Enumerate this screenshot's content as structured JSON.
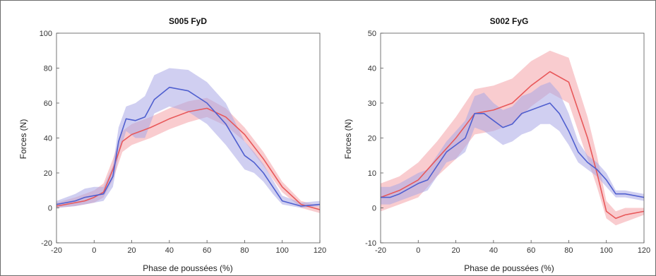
{
  "colors": {
    "series_a": "#e8585a",
    "series_b": "#4f5fcf",
    "band_a": "#f4a3a8",
    "band_b": "#a9a8e6"
  },
  "chart_data": [
    {
      "type": "line",
      "title": "S005 FyD",
      "xlabel": "Phase de poussées (%)",
      "ylabel": "Forces (N)",
      "xlim": [
        -20,
        120
      ],
      "ylim": [
        -20,
        100
      ],
      "xticks": [
        "-20",
        "0",
        "20",
        "40",
        "60",
        "80",
        "100",
        "120"
      ],
      "yticks": [
        "-20",
        "0",
        "20",
        "40",
        "60",
        "80",
        "100"
      ],
      "grid": false,
      "series": [
        {
          "color": "#e8585a",
          "x": [
            -20,
            -10,
            -5,
            0,
            5,
            10,
            15,
            20,
            25,
            30,
            40,
            50,
            60,
            70,
            80,
            90,
            100,
            110,
            120
          ],
          "y": [
            1,
            3,
            4,
            6,
            9,
            22,
            38,
            42,
            44,
            46,
            51,
            55,
            57,
            52,
            42,
            28,
            12,
            2,
            -1
          ],
          "band": [
            [
              0,
              3
            ],
            [
              1,
              6
            ],
            [
              2,
              8
            ],
            [
              3,
              10
            ],
            [
              6,
              14
            ],
            [
              16,
              28
            ],
            [
              32,
              44
            ],
            [
              36,
              48
            ],
            [
              38,
              50
            ],
            [
              40,
              52
            ],
            [
              45,
              57
            ],
            [
              49,
              61
            ],
            [
              52,
              63
            ],
            [
              47,
              57
            ],
            [
              38,
              46
            ],
            [
              24,
              32
            ],
            [
              9,
              15
            ],
            [
              0,
              4
            ],
            [
              -3,
              1
            ]
          ]
        },
        {
          "color": "#4f5fcf",
          "x": [
            -20,
            -10,
            -5,
            0,
            5,
            10,
            13,
            17,
            22,
            27,
            32,
            40,
            50,
            60,
            70,
            80,
            85,
            90,
            95,
            100,
            110,
            120
          ],
          "y": [
            2,
            4,
            6,
            7,
            8,
            18,
            38,
            51,
            50,
            52,
            62,
            69,
            67,
            60,
            48,
            30,
            26,
            20,
            12,
            4,
            1,
            2
          ],
          "band": [
            [
              0,
              4
            ],
            [
              1,
              8
            ],
            [
              2,
              11
            ],
            [
              3,
              12
            ],
            [
              4,
              12
            ],
            [
              12,
              24
            ],
            [
              30,
              46
            ],
            [
              44,
              58
            ],
            [
              40,
              60
            ],
            [
              40,
              64
            ],
            [
              54,
              76
            ],
            [
              58,
              80
            ],
            [
              55,
              79
            ],
            [
              48,
              72
            ],
            [
              36,
              60
            ],
            [
              22,
              38
            ],
            [
              20,
              32
            ],
            [
              15,
              25
            ],
            [
              8,
              16
            ],
            [
              2,
              7
            ],
            [
              0,
              3
            ],
            [
              1,
              4
            ]
          ]
        }
      ]
    },
    {
      "type": "line",
      "title": "S002 FyG",
      "xlabel": "Phase de poussées (%)",
      "ylabel": "Forces (N)",
      "xlim": [
        -20,
        120
      ],
      "ylim": [
        -10,
        50
      ],
      "xticks": [
        "-20",
        "0",
        "20",
        "40",
        "60",
        "80",
        "100",
        "120"
      ],
      "yticks": [
        "-10",
        "0",
        "10",
        "20",
        "30",
        "40",
        "50"
      ],
      "grid": false,
      "series": [
        {
          "color": "#e8585a",
          "x": [
            -20,
            -10,
            0,
            10,
            20,
            30,
            40,
            50,
            60,
            70,
            80,
            90,
            95,
            100,
            105,
            110,
            120
          ],
          "y": [
            3,
            5,
            8,
            14,
            20,
            27,
            28,
            30,
            35,
            39,
            36,
            20,
            10,
            -1,
            -3,
            -2,
            -1
          ],
          "band": [
            [
              -1,
              7
            ],
            [
              1,
              9
            ],
            [
              3,
              13
            ],
            [
              9,
              19
            ],
            [
              14,
              26
            ],
            [
              21,
              34
            ],
            [
              22,
              35
            ],
            [
              24,
              37
            ],
            [
              29,
              42
            ],
            [
              33,
              45
            ],
            [
              30,
              43
            ],
            [
              14,
              26
            ],
            [
              6,
              15
            ],
            [
              -3,
              2
            ],
            [
              -5,
              -1
            ],
            [
              -4,
              0
            ],
            [
              -2,
              0
            ]
          ]
        },
        {
          "color": "#4f5fcf",
          "x": [
            -20,
            -15,
            -10,
            0,
            5,
            10,
            15,
            20,
            25,
            30,
            35,
            40,
            45,
            50,
            55,
            60,
            65,
            70,
            75,
            80,
            85,
            90,
            95,
            100,
            105,
            110,
            120
          ],
          "y": [
            3,
            3,
            4,
            7,
            8,
            12,
            16,
            18,
            20,
            27,
            27,
            25,
            23,
            24,
            27,
            28,
            29,
            30,
            27,
            22,
            16,
            13,
            11,
            8,
            4,
            4,
            3
          ],
          "band": [
            [
              1,
              6
            ],
            [
              1,
              6
            ],
            [
              2,
              7
            ],
            [
              4,
              10
            ],
            [
              5,
              11
            ],
            [
              9,
              15
            ],
            [
              13,
              19
            ],
            [
              14,
              22
            ],
            [
              16,
              25
            ],
            [
              23,
              32
            ],
            [
              22,
              33
            ],
            [
              20,
              30
            ],
            [
              18,
              28
            ],
            [
              19,
              29
            ],
            [
              21,
              32
            ],
            [
              22,
              33
            ],
            [
              24,
              35
            ],
            [
              24,
              36
            ],
            [
              22,
              33
            ],
            [
              18,
              27
            ],
            [
              13,
              19
            ],
            [
              11,
              15
            ],
            [
              9,
              13
            ],
            [
              6,
              10
            ],
            [
              3,
              5
            ],
            [
              3,
              5
            ],
            [
              2,
              4
            ]
          ]
        }
      ]
    }
  ]
}
